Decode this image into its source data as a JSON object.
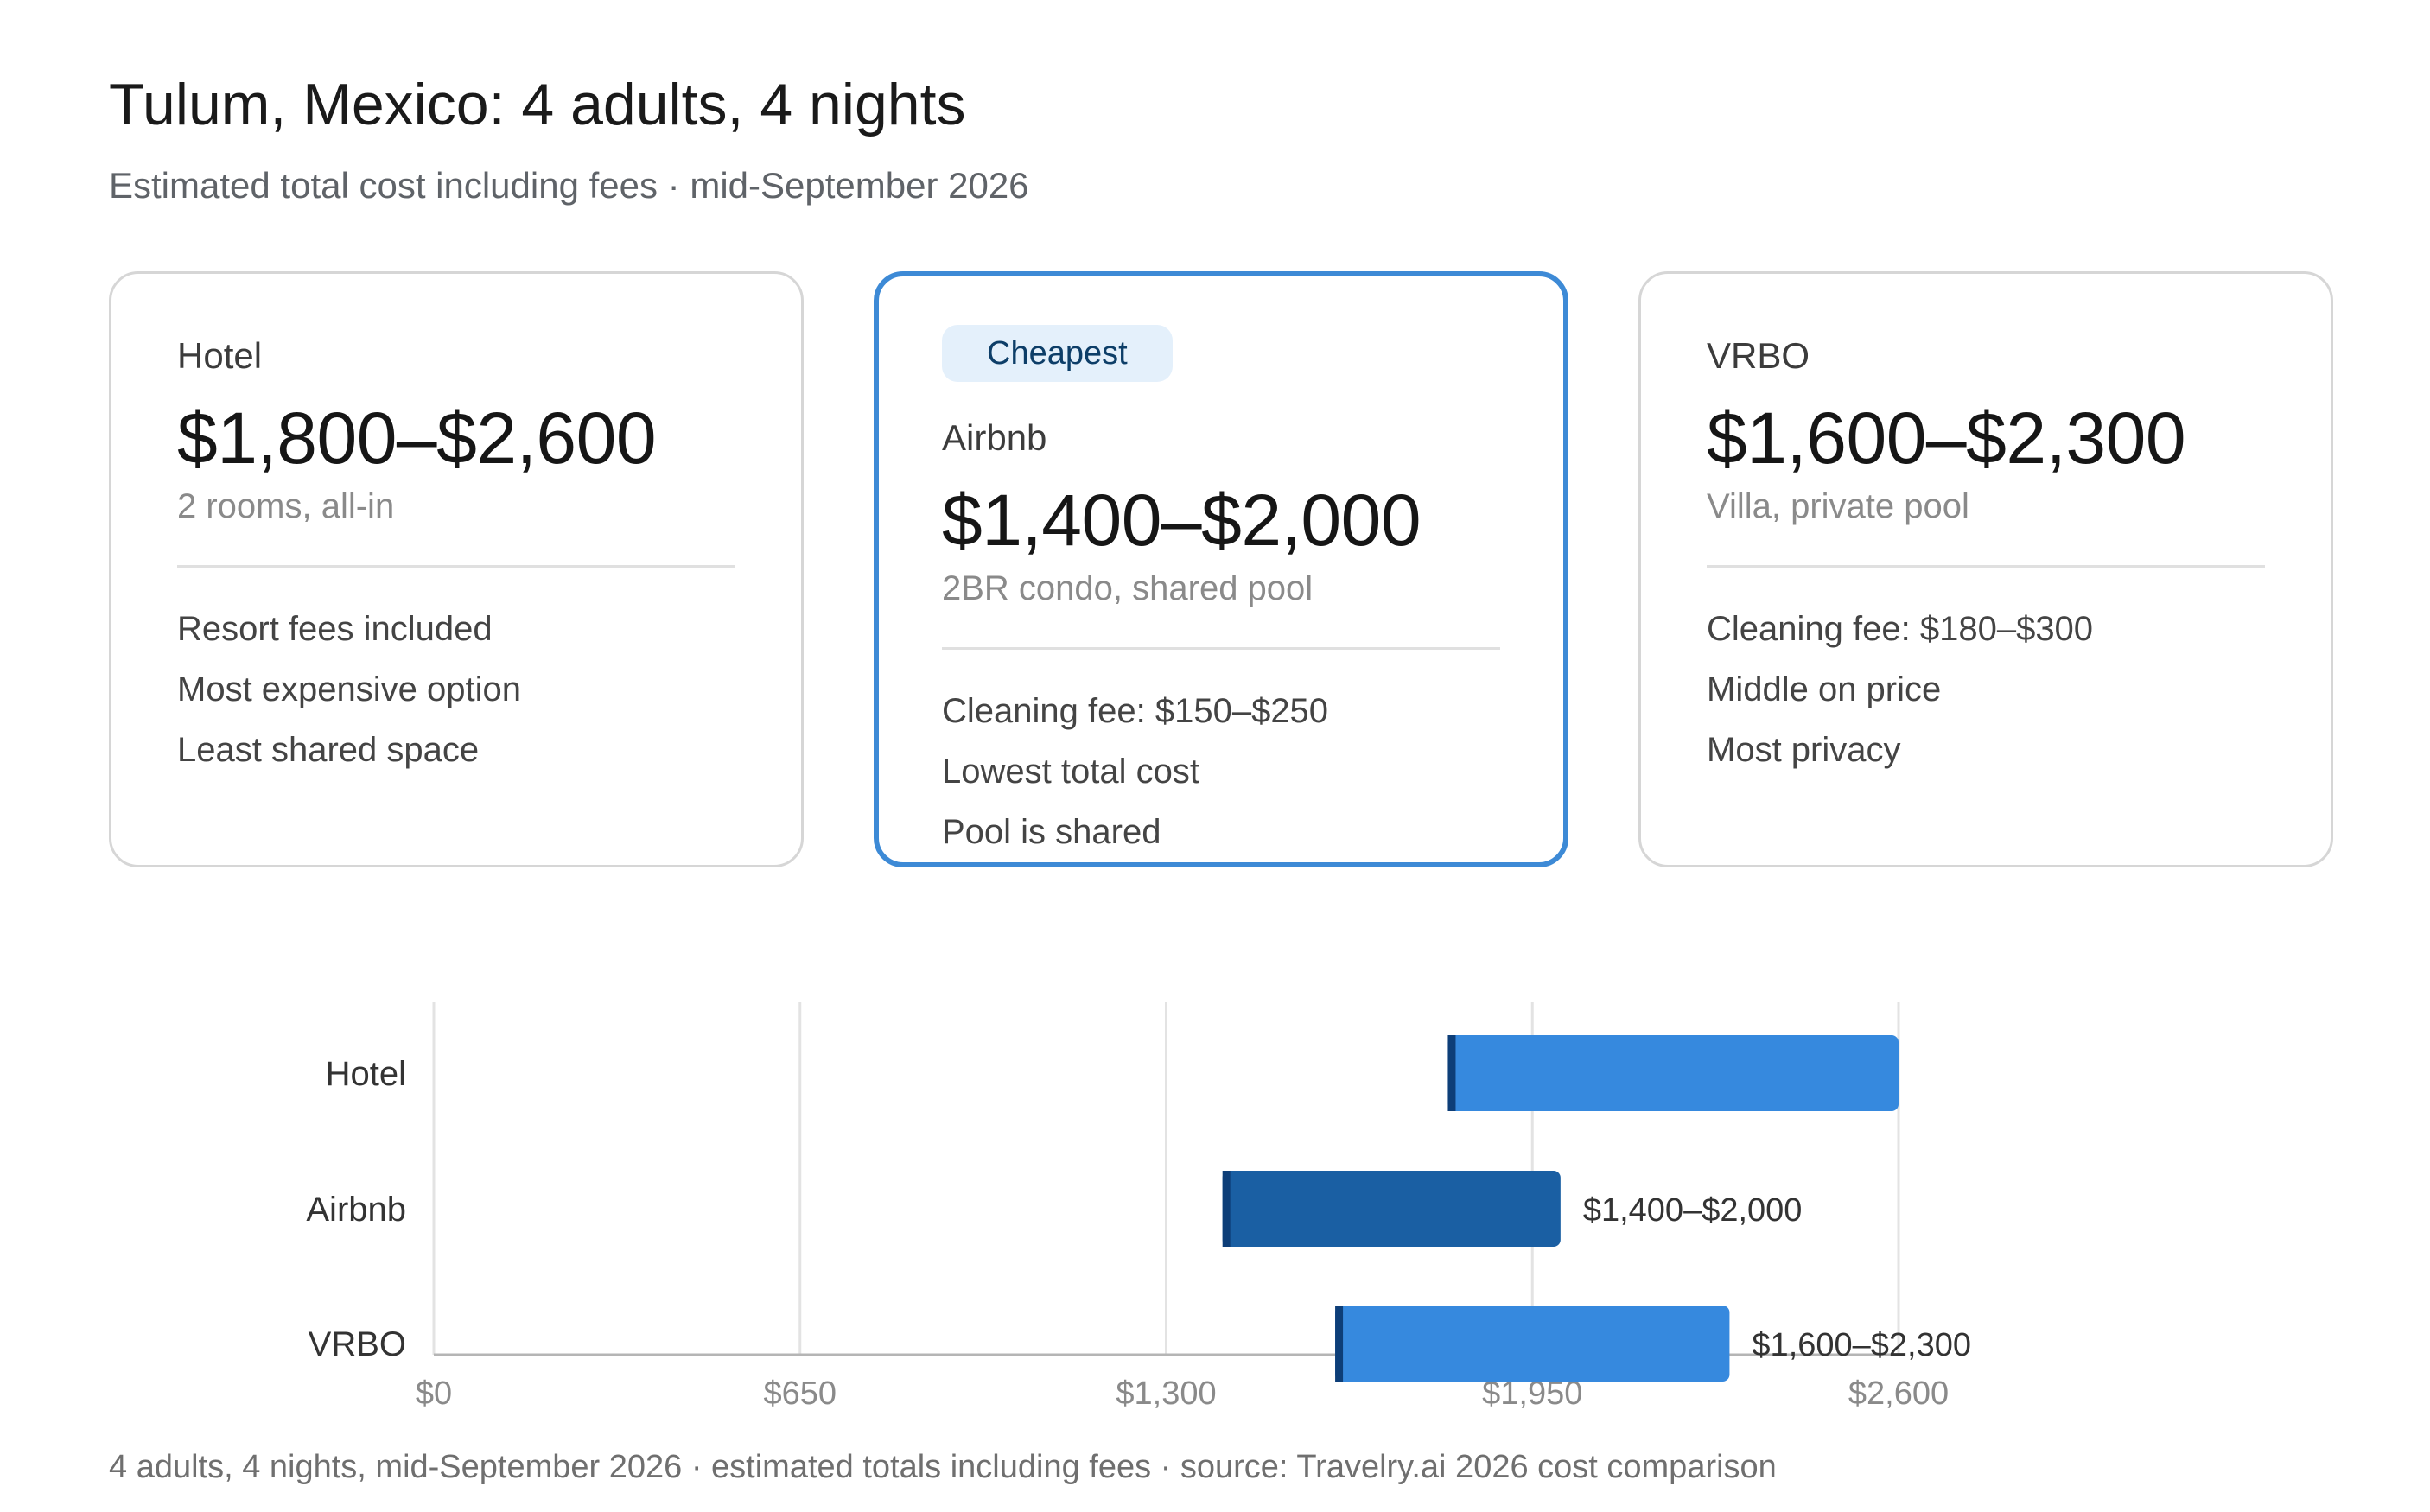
{
  "header": {
    "title": "Tulum, Mexico: 4 adults, 4 nights",
    "subtitle": "Estimated total cost including fees · mid-September 2026"
  },
  "cards": [
    {
      "name": "Hotel",
      "price": "$1,800–$2,600",
      "desc": "2 rooms, all-in",
      "features": [
        "Resort fees included",
        "Most expensive option",
        "Least shared space"
      ]
    },
    {
      "badge": "Cheapest",
      "name": "Airbnb",
      "price": "$1,400–$2,000",
      "desc": "2BR condo, shared pool",
      "features": [
        "Cleaning fee: $150–$250",
        "Lowest total cost",
        "Pool is shared"
      ]
    },
    {
      "name": "VRBO",
      "price": "$1,600–$2,300",
      "desc": "Villa, private pool",
      "features": [
        "Cleaning fee: $180–$300",
        "Middle on price",
        "Most privacy"
      ]
    }
  ],
  "chart_data": {
    "type": "bar",
    "orientation": "horizontal",
    "range_bars": true,
    "categories": [
      "Hotel",
      "Airbnb",
      "VRBO"
    ],
    "ranges": [
      {
        "category": "Hotel",
        "low": 1800,
        "high": 2600,
        "label": "",
        "color": "#3689de",
        "highlighted": false
      },
      {
        "category": "Airbnb",
        "low": 1400,
        "high": 2000,
        "label": "$1,400–$2,000",
        "color": "#1a5fa3",
        "highlighted": true
      },
      {
        "category": "VRBO",
        "low": 1600,
        "high": 2300,
        "label": "$1,600–$2,300",
        "color": "#3689de",
        "highlighted": false
      }
    ],
    "xlim": [
      0,
      2600
    ],
    "x_ticks": [
      {
        "value": 0,
        "label": "$0"
      },
      {
        "value": 650,
        "label": "$650"
      },
      {
        "value": 1300,
        "label": "$1,300"
      },
      {
        "value": 1950,
        "label": "$1,950"
      },
      {
        "value": 2600,
        "label": "$2,600"
      }
    ],
    "grid": true,
    "title": "",
    "xlabel": "",
    "ylabel": "",
    "marker_color": "#0d3e78"
  },
  "footnote": "4 adults, 4 nights, mid-September 2026 · estimated totals including fees · source: Travelry.ai 2026 cost comparison"
}
